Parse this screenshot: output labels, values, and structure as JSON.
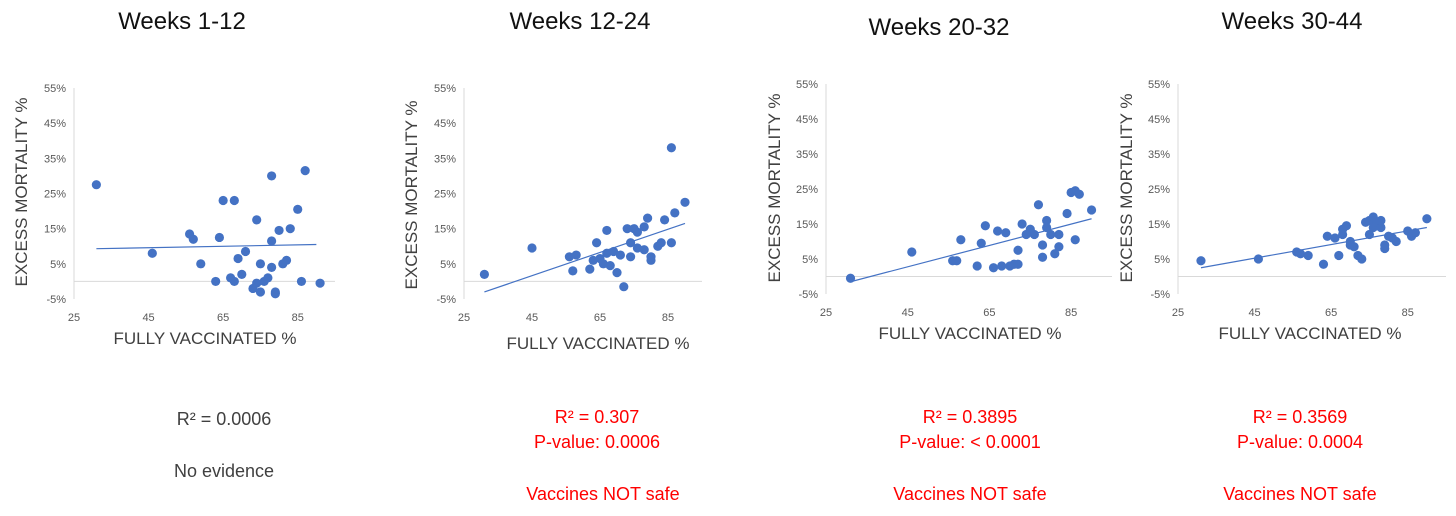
{
  "chart_data": [
    {
      "type": "scatter",
      "title": "Weeks 1-12",
      "xlabel": "FULLY VACCINATED %",
      "ylabel": "EXCESS MORTALITY %",
      "xlim": [
        25,
        95
      ],
      "ylim": [
        -5,
        55
      ],
      "xticks": [
        "25",
        "45",
        "65",
        "85"
      ],
      "yticks": [
        "-5%",
        "5%",
        "15%",
        "25%",
        "35%",
        "45%",
        "55%"
      ],
      "trendline": [
        [
          31,
          9.3
        ],
        [
          90,
          10.5
        ]
      ],
      "x": [
        31,
        46,
        56,
        57,
        59,
        63,
        64,
        65,
        67,
        68,
        68,
        69,
        70,
        71,
        73,
        74,
        74,
        75,
        75,
        76,
        77,
        78,
        78,
        78,
        79,
        79,
        80,
        81,
        82,
        83,
        85,
        86,
        87,
        91
      ],
      "y": [
        27.5,
        8,
        13.5,
        12,
        5,
        0,
        12.5,
        23,
        1,
        23,
        0,
        6.5,
        2,
        8.5,
        -2,
        -0.5,
        17.5,
        5,
        -3,
        0,
        1,
        4,
        11.5,
        30,
        -3,
        -3.5,
        14.5,
        5,
        6,
        15,
        20.5,
        0,
        31.5,
        -0.5
      ],
      "stats": [
        "R² = 0.0006"
      ],
      "verdict": "No evidence",
      "stat_color": "#404040",
      "point_color": "#4472C4"
    },
    {
      "type": "scatter",
      "title": "Weeks 12-24",
      "xlabel": "FULLY VACCINATED %",
      "ylabel": "EXCESS MORTALITY %",
      "xlim": [
        25,
        95
      ],
      "ylim": [
        -5,
        55
      ],
      "xticks": [
        "25",
        "45",
        "65",
        "85"
      ],
      "yticks": [
        "-5%",
        "5%",
        "15%",
        "25%",
        "35%",
        "45%",
        "55%"
      ],
      "trendline": [
        [
          31,
          -3
        ],
        [
          90,
          16.5
        ]
      ],
      "x": [
        31,
        45,
        56,
        57,
        58,
        62,
        63,
        64,
        65,
        66,
        67,
        67,
        68,
        69,
        70,
        71,
        72,
        73,
        74,
        74,
        75,
        76,
        76,
        78,
        78,
        79,
        80,
        80,
        82,
        83,
        84,
        86,
        86,
        87,
        90
      ],
      "y": [
        2,
        9.5,
        7,
        3,
        7.5,
        3.5,
        6,
        11,
        6.5,
        5,
        8,
        14.5,
        4.5,
        8.5,
        2.5,
        7.5,
        -1.5,
        15,
        11,
        7,
        15,
        9.5,
        14,
        9,
        15.5,
        18,
        6,
        7,
        10,
        11,
        17.5,
        11,
        38,
        19.5,
        22.5
      ],
      "stats": [
        "R² = 0.307",
        "P-value: 0.0006"
      ],
      "verdict": "Vaccines NOT safe",
      "stat_color": "#FF0000",
      "point_color": "#4472C4"
    },
    {
      "type": "scatter",
      "title": "Weeks 20-32",
      "xlabel": "FULLY VACCINATED %",
      "ylabel": "EXCESS MORTALITY %",
      "xlim": [
        25,
        95
      ],
      "ylim": [
        -5,
        55
      ],
      "xticks": [
        "25",
        "45",
        "65",
        "85"
      ],
      "yticks": [
        "-5%",
        "5%",
        "15%",
        "25%",
        "35%",
        "45%",
        "55%"
      ],
      "trendline": [
        [
          31,
          -1.5
        ],
        [
          90,
          16.5
        ]
      ],
      "x": [
        31,
        46,
        56,
        57,
        58,
        62,
        63,
        64,
        66,
        67,
        68,
        69,
        70,
        71,
        72,
        72,
        73,
        74,
        75,
        76,
        77,
        78,
        78,
        79,
        79,
        80,
        81,
        82,
        82,
        84,
        85,
        86,
        86,
        87,
        90
      ],
      "y": [
        -0.5,
        7,
        4.5,
        4.5,
        10.5,
        3,
        9.5,
        14.5,
        2.5,
        13,
        3,
        12.5,
        3,
        3.5,
        7.5,
        3.5,
        15,
        12,
        13.5,
        12,
        20.5,
        5.5,
        9,
        16,
        14,
        12,
        6.5,
        8.5,
        12,
        18,
        24,
        10.5,
        24.5,
        23.5,
        19
      ],
      "stats": [
        "R² = 0.3895",
        "P-value: < 0.0001"
      ],
      "verdict": "Vaccines NOT safe",
      "stat_color": "#FF0000",
      "point_color": "#4472C4"
    },
    {
      "type": "scatter",
      "title": "Weeks 30-44",
      "xlabel": "FULLY VACCINATED %",
      "ylabel": "EXCESS MORTALITY %",
      "xlim": [
        25,
        95
      ],
      "ylim": [
        -5,
        55
      ],
      "xticks": [
        "25",
        "45",
        "65",
        "85"
      ],
      "yticks": [
        "-5%",
        "5%",
        "15%",
        "25%",
        "35%",
        "45%",
        "55%"
      ],
      "trendline": [
        [
          31,
          2.5
        ],
        [
          90,
          14
        ]
      ],
      "x": [
        31,
        46,
        56,
        57,
        59,
        63,
        64,
        66,
        67,
        68,
        68,
        69,
        70,
        70,
        71,
        72,
        73,
        74,
        75,
        75,
        76,
        76,
        77,
        78,
        78,
        79,
        79,
        80,
        81,
        82,
        85,
        86,
        87,
        90
      ],
      "y": [
        4.5,
        5,
        7,
        6.5,
        6,
        3.5,
        11.5,
        11,
        6,
        12,
        13.5,
        14.5,
        9,
        10,
        8.5,
        6,
        5,
        15.5,
        16,
        12,
        17,
        14,
        15.5,
        14,
        16,
        8,
        9,
        11.5,
        11,
        10,
        13,
        11.5,
        12.5,
        16.5
      ],
      "stats": [
        "R² = 0.3569",
        "P-value: 0.0004"
      ],
      "verdict": "Vaccines NOT safe",
      "stat_color": "#FF0000",
      "point_color": "#4472C4"
    }
  ]
}
